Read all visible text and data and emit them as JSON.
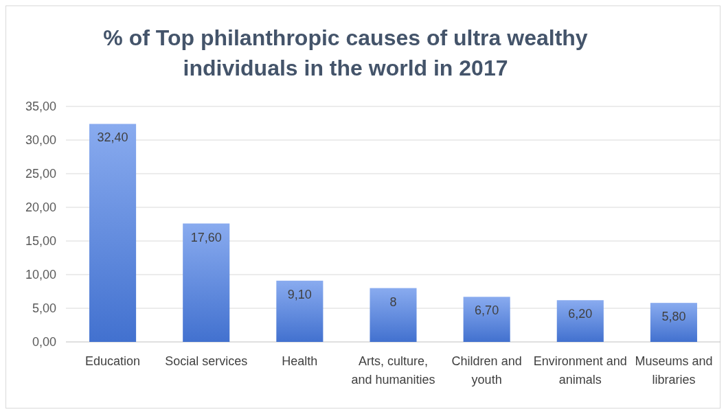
{
  "chart_data": {
    "type": "bar",
    "title": "% of Top philanthropic causes of ultra wealthy individuals in the world in 2017",
    "categories": [
      "Education",
      "Social services",
      "Health",
      "Arts, culture, and humanities",
      "Children and youth",
      "Environment and animals",
      "Museums and libraries"
    ],
    "values": [
      32.4,
      17.6,
      9.1,
      8,
      6.7,
      6.2,
      5.8
    ],
    "value_labels": [
      "32,40",
      "17,60",
      "9,10",
      "8",
      "6,70",
      "6,20",
      "5,80"
    ],
    "color": "#4a7ee6",
    "ylim": [
      0,
      35
    ],
    "yticks": [
      {
        "value": 0,
        "label": "0,00"
      },
      {
        "value": 5,
        "label": "5,00"
      },
      {
        "value": 10,
        "label": "10,00"
      },
      {
        "value": 15,
        "label": "15,00"
      },
      {
        "value": 20,
        "label": "20,00"
      },
      {
        "value": 25,
        "label": "25,00"
      },
      {
        "value": 30,
        "label": "30,00"
      },
      {
        "value": 35,
        "label": "35,00"
      }
    ],
    "grid": "y"
  }
}
